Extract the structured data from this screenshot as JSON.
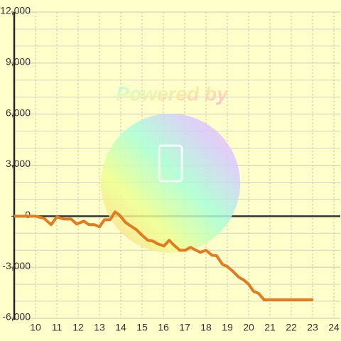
{
  "chart_data": {
    "type": "line",
    "watermark": "Powered by",
    "x": [
      9,
      10,
      10.4,
      10.73,
      11,
      11.33,
      11.67,
      11.93,
      12.27,
      12.5,
      12.77,
      13,
      13.23,
      13.5,
      13.73,
      13.93,
      14.23,
      14.47,
      14.73,
      15,
      15.27,
      15.5,
      15.73,
      16.03,
      16.27,
      16.5,
      16.77,
      17.03,
      17.27,
      17.53,
      17.73,
      18,
      18.27,
      18.5,
      18.77,
      19,
      19.27,
      19.53,
      19.77,
      20,
      20.23,
      20.47,
      20.73,
      23.03
    ],
    "series": [
      {
        "color": "#e07b20",
        "values": [
          0,
          0,
          -125,
          -500,
          -40,
          -170,
          -170,
          -460,
          -290,
          -500,
          -500,
          -625,
          -210,
          -210,
          250,
          80,
          -375,
          -580,
          -790,
          -1125,
          -1415,
          -1460,
          -1625,
          -1750,
          -1415,
          -1710,
          -2000,
          -2000,
          -1830,
          -2000,
          -2125,
          -2000,
          -2290,
          -2330,
          -2830,
          -2960,
          -3250,
          -3580,
          -3750,
          -4000,
          -4420,
          -4540,
          -4920,
          -4920
        ]
      }
    ],
    "xlim": [
      9,
      24.3
    ],
    "ylim": [
      -6000,
      12000
    ],
    "xticks": [
      10,
      11,
      12,
      13,
      14,
      15,
      16,
      17,
      18,
      19,
      20,
      21,
      22,
      23,
      24
    ],
    "yticks": [
      {
        "value": -6000,
        "label": "-6,000"
      },
      {
        "value": -3000,
        "label": "-3,000"
      },
      0,
      {
        "value": 3000,
        "label": "3,000"
      },
      {
        "value": 6000,
        "label": "6,000"
      },
      {
        "value": 9000,
        "label": "9,000"
      },
      {
        "value": 12000,
        "label": "12,000"
      }
    ],
    "y_minor_ticks": [
      -5000,
      -4000,
      -2000,
      -1000,
      1000,
      2000,
      4000,
      5000,
      7000,
      8000,
      10000,
      11000
    ],
    "grid": true
  }
}
